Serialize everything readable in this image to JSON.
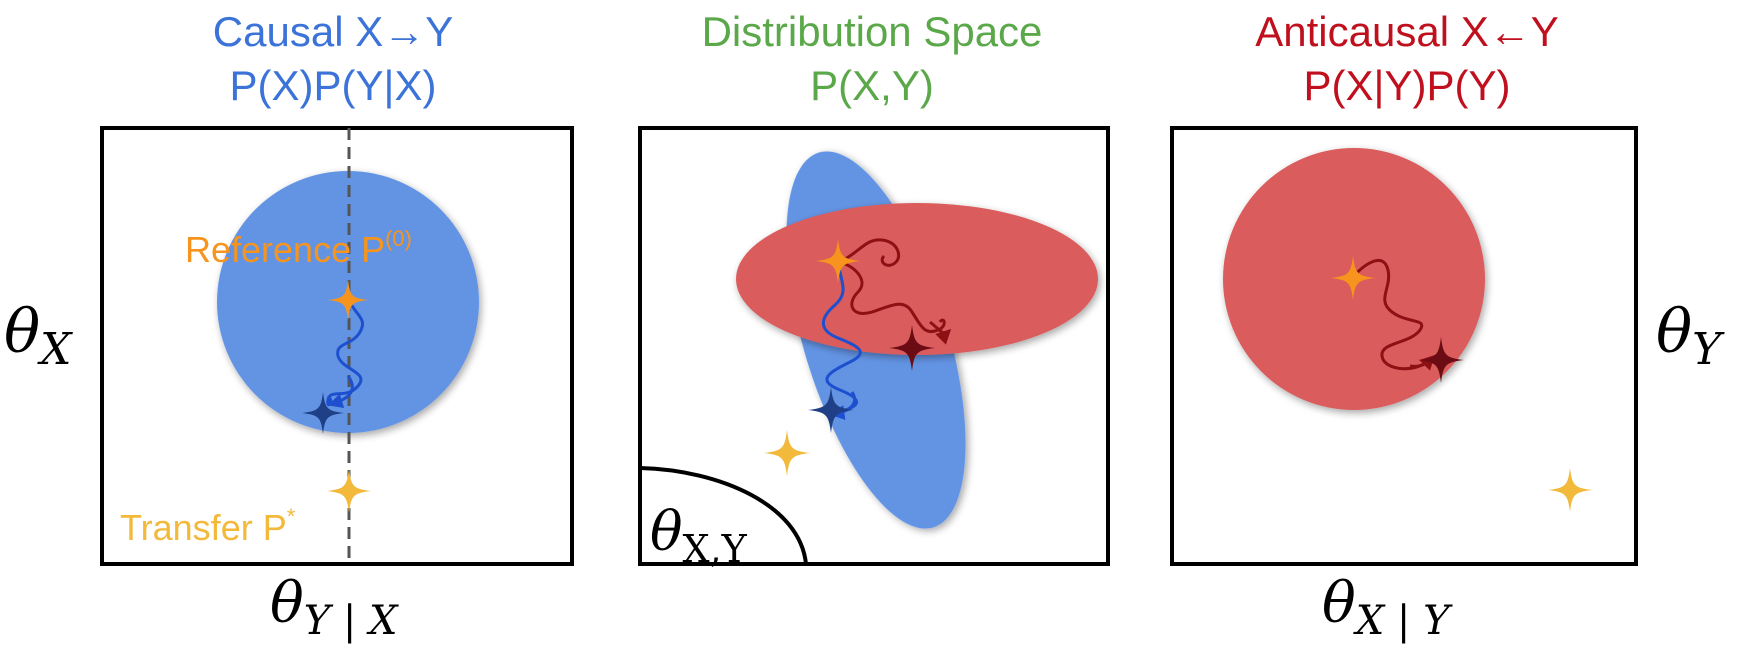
{
  "colors": {
    "causal": "#3b73d8",
    "distribution": "#5ba84a",
    "anticausal": "#c0101e",
    "blue_fill": "#6394e4",
    "red_fill": "#da5c5c",
    "reference_star": "#f7941d",
    "transfer_star": "#f2b93a",
    "causal_end_star": "#1f3f86",
    "anticausal_end_star": "#6b0c14",
    "causal_path": "#1d4fcf",
    "anticausal_path": "#8c1014",
    "frame": "#000000"
  },
  "panels": [
    {
      "id": "causal",
      "title": "Causal X→Y",
      "subtitle": "P(X)P(Y|X)",
      "y_axis": "θ",
      "y_axis_sub": "X",
      "x_axis": "θ",
      "x_axis_sub": "Y | X",
      "reference_label": "Reference P",
      "reference_sup": "(0)",
      "transfer_label": "Transfer P",
      "transfer_sup": "*"
    },
    {
      "id": "distribution",
      "title": "Distribution Space",
      "subtitle": "P(X,Y)",
      "region_label": "θ",
      "region_sub": "X,Y"
    },
    {
      "id": "anticausal",
      "title": "Anticausal X←Y",
      "subtitle": "P(X|Y)P(Y)",
      "y_axis": "θ",
      "y_axis_sub": "Y",
      "x_axis": "θ",
      "x_axis_sub": "X | Y"
    }
  ]
}
